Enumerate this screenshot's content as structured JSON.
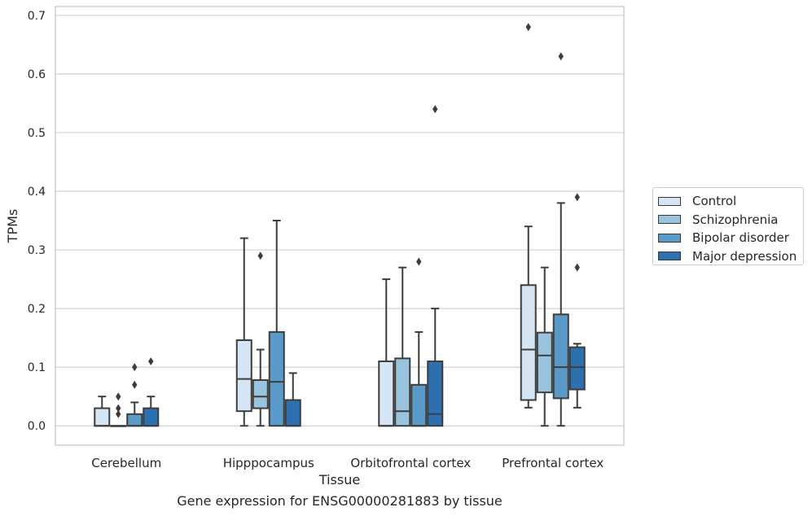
{
  "chart_data": {
    "type": "box",
    "title": "",
    "caption": "Gene expression for ENSG00000281883 by tissue",
    "xlabel": "Tissue",
    "ylabel": "TPMs",
    "ylim": [
      -0.033,
      0.715
    ],
    "y_ticks": [
      "0.0",
      "0.1",
      "0.2",
      "0.3",
      "0.4",
      "0.5",
      "0.6",
      "0.7"
    ],
    "grid": "horizontal",
    "legend_position": "right, outside plot",
    "categories": [
      "Cerebellum",
      "Hipppocampus",
      "Orbitofrontal cortex",
      "Prefrontal cortex"
    ],
    "series": [
      {
        "name": "Control",
        "color": "#d6e5f4",
        "boxes": [
          {
            "whisker_low": 0,
            "q1": 0,
            "median": 0,
            "q3": 0.03,
            "whisker_high": 0.05,
            "outliers": []
          },
          {
            "whisker_low": 0,
            "q1": 0.025,
            "median": 0.08,
            "q3": 0.146,
            "whisker_high": 0.32,
            "outliers": []
          },
          {
            "whisker_low": 0,
            "q1": 0,
            "median": 0,
            "q3": 0.11,
            "whisker_high": 0.25,
            "outliers": []
          },
          {
            "whisker_low": 0.031,
            "q1": 0.044,
            "median": 0.13,
            "q3": 0.24,
            "whisker_high": 0.34,
            "outliers": [
              0.68
            ]
          }
        ]
      },
      {
        "name": "Schizophrenia",
        "color": "#9ac4dd",
        "boxes": [
          {
            "whisker_low": 0,
            "q1": 0,
            "median": 0,
            "q3": 0,
            "whisker_high": 0,
            "outliers": [
              0.05,
              0.03,
              0.02
            ]
          },
          {
            "whisker_low": 0,
            "q1": 0.03,
            "median": 0.05,
            "q3": 0.078,
            "whisker_high": 0.13,
            "outliers": [
              0.29
            ]
          },
          {
            "whisker_low": 0,
            "q1": 0,
            "median": 0.025,
            "q3": 0.115,
            "whisker_high": 0.27,
            "outliers": []
          },
          {
            "whisker_low": 0,
            "q1": 0.057,
            "median": 0.12,
            "q3": 0.159,
            "whisker_high": 0.27,
            "outliers": []
          }
        ]
      },
      {
        "name": "Bipolar disorder",
        "color": "#5a9ac8",
        "boxes": [
          {
            "whisker_low": 0,
            "q1": 0,
            "median": 0,
            "q3": 0.02,
            "whisker_high": 0.04,
            "outliers": [
              0.1,
              0.07
            ]
          },
          {
            "whisker_low": 0,
            "q1": 0,
            "median": 0.075,
            "q3": 0.16,
            "whisker_high": 0.35,
            "outliers": []
          },
          {
            "whisker_low": 0,
            "q1": 0,
            "median": 0,
            "q3": 0.07,
            "whisker_high": 0.16,
            "outliers": [
              0.28
            ]
          },
          {
            "whisker_low": 0,
            "q1": 0.047,
            "median": 0.1,
            "q3": 0.19,
            "whisker_high": 0.38,
            "outliers": [
              0.63
            ]
          }
        ]
      },
      {
        "name": "Major depression",
        "color": "#2d70b0",
        "boxes": [
          {
            "whisker_low": 0,
            "q1": 0,
            "median": 0,
            "q3": 0.03,
            "whisker_high": 0.05,
            "outliers": [
              0.11
            ]
          },
          {
            "whisker_low": 0,
            "q1": 0,
            "median": 0,
            "q3": 0.044,
            "whisker_high": 0.09,
            "outliers": []
          },
          {
            "whisker_low": 0,
            "q1": 0,
            "median": 0.02,
            "q3": 0.11,
            "whisker_high": 0.2,
            "outliers": [
              0.54
            ]
          },
          {
            "whisker_low": 0.031,
            "q1": 0.062,
            "median": 0.1,
            "q3": 0.134,
            "whisker_high": 0.14,
            "outliers": [
              0.39,
              0.27
            ]
          }
        ]
      }
    ]
  }
}
